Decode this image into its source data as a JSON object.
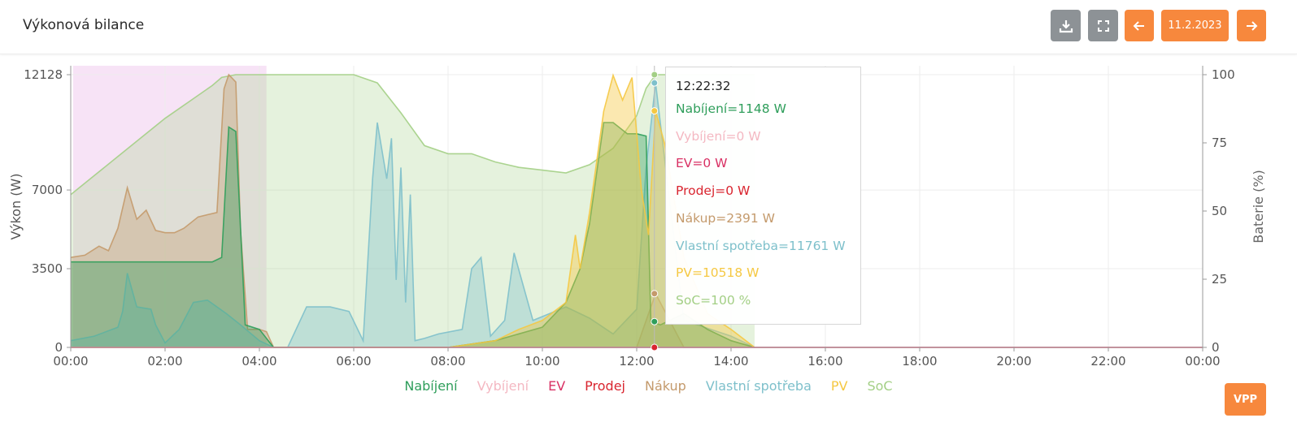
{
  "header": {
    "title": "Výkonová bilance",
    "date": "11.2.2023",
    "download_icon": "download-icon",
    "fullscreen_icon": "fullscreen-icon",
    "prev_icon": "arrow-left-icon",
    "next_icon": "arrow-right-icon"
  },
  "vpp_label": "VPP",
  "colors": {
    "accent": "#f7883d",
    "grey_button": "#8d9296",
    "Nabíjení": "#2f9e5b",
    "Vybíjení": "#f4b8c2",
    "EV": "#d93164",
    "Prodej": "#d9252f",
    "Nákup": "#c49a6c",
    "Vlastní spotřeba": "#7ec0cb",
    "PV": "#f5c842",
    "SoC": "#a3cf85"
  },
  "tooltip": {
    "time": "12:22:32",
    "rows": [
      {
        "label": "Nabíjení=1148 W",
        "color": "#2f9e5b"
      },
      {
        "label": "Vybíjení=0 W",
        "color": "#f4b8c2"
      },
      {
        "label": "EV=0 W",
        "color": "#d93164"
      },
      {
        "label": "Prodej=0 W",
        "color": "#d9252f"
      },
      {
        "label": "Nákup=2391 W",
        "color": "#c49a6c"
      },
      {
        "label": "Vlastní spotřeba=11761 W",
        "color": "#7ec0cb"
      },
      {
        "label": "PV=10518 W",
        "color": "#f5c842"
      },
      {
        "label": "SoC=100 %",
        "color": "#a3cf85"
      }
    ]
  },
  "chart_data": {
    "type": "area",
    "title": "",
    "ylabel": "Výkon (W)",
    "y2label": "Baterie (%)",
    "ylim": [
      0,
      12128
    ],
    "y2lim": [
      0,
      100
    ],
    "yticks": [
      0,
      3500,
      7000,
      12128
    ],
    "y2ticks": [
      0,
      25,
      50,
      75,
      100
    ],
    "xticks": [
      "00:00",
      "02:00",
      "04:00",
      "06:00",
      "08:00",
      "10:00",
      "12:00",
      "14:00",
      "16:00",
      "18:00",
      "20:00",
      "22:00",
      "00:00"
    ],
    "xlim_hours": [
      0,
      24
    ],
    "grid": true,
    "legend_position": "bottom",
    "cursor_time": "12:22:32",
    "series": [
      {
        "name": "SoC",
        "axis": "right",
        "x": [
          0,
          0.5,
          1,
          1.5,
          2,
          2.5,
          3,
          3.2,
          3.5,
          4,
          4.15,
          4.5,
          5,
          5.5,
          6,
          6.5,
          7,
          7.5,
          8,
          8.5,
          9,
          9.5,
          10,
          10.5,
          11,
          11.5,
          12,
          12.2,
          12.4,
          13,
          14,
          14.5
        ],
        "values": [
          56,
          63,
          70,
          77,
          84,
          90,
          96,
          99,
          100,
          100,
          100,
          100,
          100,
          100,
          100,
          97,
          86,
          74,
          71,
          71,
          68,
          66,
          65,
          64,
          67,
          73,
          85,
          95,
          100,
          100,
          100,
          100
        ]
      },
      {
        "name": "Nákup",
        "axis": "left",
        "x": [
          0,
          0.3,
          0.6,
          0.8,
          1.0,
          1.2,
          1.4,
          1.6,
          1.8,
          2.0,
          2.2,
          2.4,
          2.7,
          2.9,
          3.1,
          3.25,
          3.35,
          3.5,
          3.6,
          3.75,
          4.0,
          4.15,
          4.3,
          5,
          6,
          7,
          8,
          9,
          10,
          11,
          12,
          12.4,
          13,
          14,
          14.5
        ],
        "values": [
          4000,
          4100,
          4500,
          4300,
          5300,
          7100,
          5700,
          6100,
          5200,
          5100,
          5100,
          5300,
          5800,
          5900,
          6000,
          11500,
          12128,
          11800,
          5200,
          800,
          800,
          700,
          0,
          0,
          0,
          0,
          0,
          0,
          0,
          0,
          0,
          2391,
          0,
          0,
          0
        ]
      },
      {
        "name": "Nabíjení",
        "axis": "left",
        "x": [
          0,
          0.5,
          1,
          1.5,
          2,
          2.5,
          3,
          3.2,
          3.35,
          3.5,
          3.7,
          4.0,
          4.3,
          8,
          9,
          10,
          10.5,
          10.8,
          11,
          11.3,
          11.5,
          11.8,
          12.0,
          12.2,
          12.3,
          12.5,
          13,
          13.5,
          14,
          14.5
        ],
        "values": [
          3800,
          3800,
          3800,
          3800,
          3800,
          3800,
          3800,
          4000,
          9800,
          9600,
          1000,
          800,
          0,
          0,
          300,
          900,
          2000,
          3500,
          5500,
          10000,
          10000,
          9500,
          9500,
          9400,
          1148,
          1000,
          1500,
          800,
          300,
          0
        ]
      },
      {
        "name": "Vlastní spotřeba",
        "axis": "left",
        "x": [
          0,
          0.5,
          1,
          1.1,
          1.2,
          1.4,
          1.7,
          1.8,
          2.0,
          2.3,
          2.6,
          2.9,
          3.3,
          3.6,
          4.0,
          4.3,
          4.6,
          5.0,
          5.5,
          5.9,
          6.2,
          6.4,
          6.5,
          6.7,
          6.8,
          6.9,
          7.0,
          7.1,
          7.2,
          7.3,
          7.5,
          7.8,
          8.3,
          8.5,
          8.7,
          8.9,
          9.2,
          9.4,
          9.8,
          10.5,
          11,
          11.5,
          12,
          12.2,
          12.4,
          13,
          14,
          14.5
        ],
        "values": [
          300,
          500,
          900,
          1600,
          3300,
          1800,
          1700,
          1000,
          200,
          800,
          2000,
          2100,
          1500,
          1000,
          300,
          0,
          0,
          1800,
          1800,
          1600,
          300,
          7500,
          10000,
          7500,
          9300,
          3000,
          8000,
          2000,
          6800,
          300,
          400,
          600,
          800,
          3500,
          4000,
          500,
          1200,
          4200,
          1200,
          1800,
          1300,
          600,
          1700,
          8000,
          11761,
          1200,
          500,
          0
        ]
      },
      {
        "name": "PV",
        "axis": "left",
        "x": [
          0,
          8,
          9,
          9.5,
          10,
          10.5,
          10.7,
          10.8,
          11,
          11.3,
          11.5,
          11.7,
          11.9,
          12.1,
          12.25,
          12.4,
          12.6,
          13,
          13.5,
          14,
          14.5
        ],
        "values": [
          0,
          0,
          300,
          800,
          1200,
          2000,
          5000,
          3500,
          6000,
          10500,
          12100,
          11000,
          12000,
          7000,
          5000,
          10518,
          9000,
          4000,
          1500,
          800,
          0
        ]
      },
      {
        "name": "Prodej",
        "axis": "left",
        "x": [
          0,
          12.2,
          12.4,
          12.5,
          24
        ],
        "values": [
          0,
          0,
          0,
          0,
          0
        ]
      },
      {
        "name": "EV",
        "axis": "left",
        "x": [
          0,
          24
        ],
        "values": [
          0,
          0
        ]
      },
      {
        "name": "Vybíjení",
        "axis": "left",
        "x": [
          0,
          4.15,
          4.2,
          24
        ],
        "values": [
          0,
          0,
          0,
          0
        ]
      }
    ],
    "legend": [
      "Nabíjení",
      "Vybíjení",
      "EV",
      "Prodej",
      "Nákup",
      "Vlastní spotřeba",
      "PV",
      "SoC"
    ]
  }
}
